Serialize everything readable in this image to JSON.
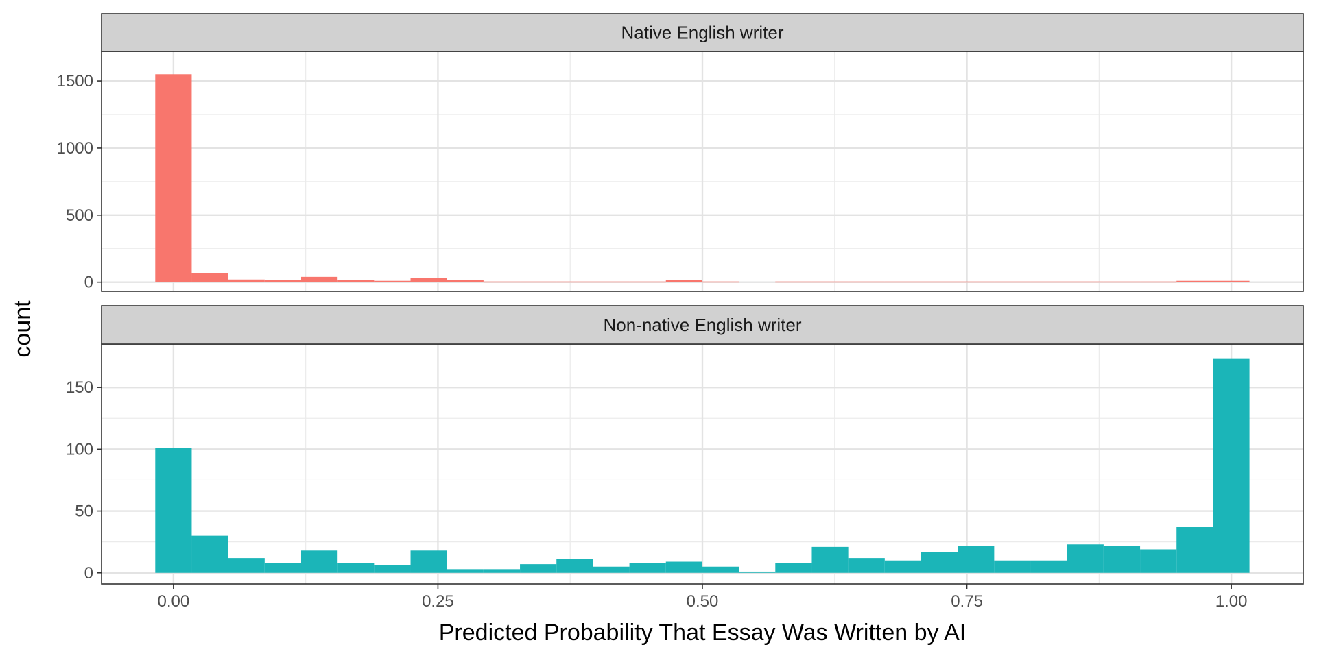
{
  "chart_data": {
    "type": "bar",
    "subtype": "faceted-histogram",
    "title": "",
    "xlabel": "Predicted Probability That Essay Was Written by AI",
    "ylabel": "count",
    "xlim": [
      -0.068,
      1.068
    ],
    "x_ticks": [
      0.0,
      0.25,
      0.5,
      0.75,
      1.0
    ],
    "x_tick_labels": [
      "0.00",
      "0.25",
      "0.50",
      "0.75",
      "1.00"
    ],
    "bin_width": 0.03448,
    "bin_start": -0.01724,
    "bin_centers": [
      0.0,
      0.0345,
      0.069,
      0.1034,
      0.1379,
      0.1724,
      0.2069,
      0.2414,
      0.2759,
      0.3103,
      0.3448,
      0.3793,
      0.4138,
      0.4483,
      0.4828,
      0.5172,
      0.5517,
      0.5862,
      0.6207,
      0.6552,
      0.6897,
      0.7241,
      0.7586,
      0.7931,
      0.8276,
      0.8621,
      0.8966,
      0.931,
      0.9655,
      1.0
    ],
    "grid": true,
    "legend": "none",
    "panels": [
      {
        "name": "Native English writer",
        "color": "#F8766D",
        "ylim": [
          -68,
          1720
        ],
        "y_ticks": [
          0,
          500,
          1000,
          1500
        ],
        "y_tick_labels": [
          "0",
          "500",
          "1000",
          "1500"
        ],
        "values": [
          1550,
          65,
          20,
          15,
          40,
          15,
          10,
          30,
          15,
          5,
          5,
          5,
          5,
          5,
          15,
          5,
          0,
          5,
          5,
          5,
          5,
          5,
          5,
          5,
          5,
          5,
          5,
          5,
          10,
          10
        ]
      },
      {
        "name": "Non-native English writer",
        "color": "#1BB5B8",
        "ylim": [
          -9,
          185
        ],
        "y_ticks": [
          0,
          50,
          100,
          150
        ],
        "y_tick_labels": [
          "0",
          "50",
          "100",
          "150"
        ],
        "values": [
          101,
          30,
          12,
          8,
          18,
          8,
          6,
          18,
          3,
          3,
          7,
          11,
          5,
          8,
          9,
          5,
          1,
          8,
          21,
          12,
          10,
          17,
          22,
          10,
          10,
          23,
          22,
          19,
          37,
          173
        ]
      }
    ]
  }
}
